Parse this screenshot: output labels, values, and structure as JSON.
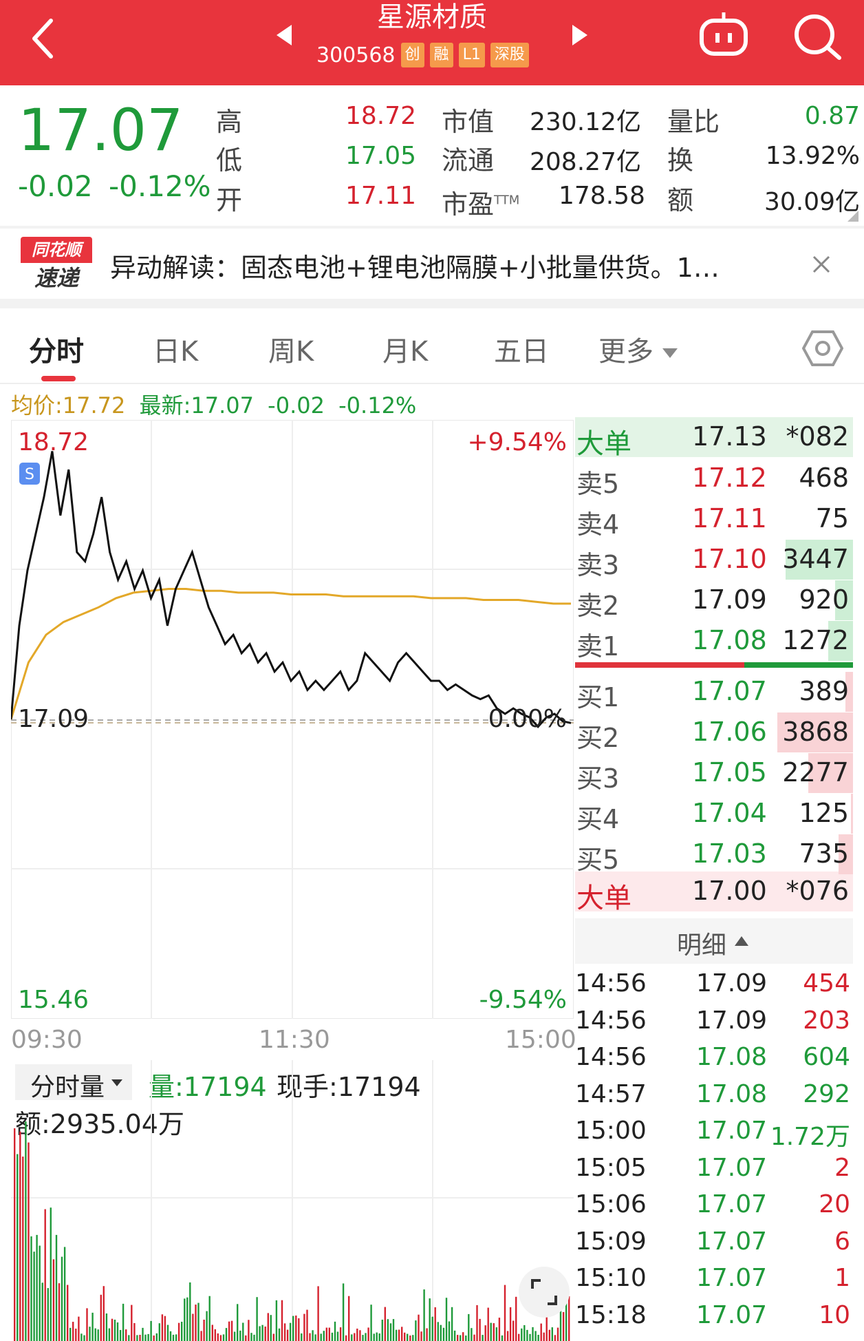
{
  "header": {
    "title": "星源材质",
    "code": "300568",
    "tags": [
      "创",
      "融",
      "L1",
      "深股"
    ]
  },
  "quote": {
    "price": "17.07",
    "change": "-0.02",
    "change_pct": "-0.12%",
    "stats": [
      {
        "label": "高",
        "value": "18.72"
      },
      {
        "label": "低",
        "value": "17.05"
      },
      {
        "label": "开",
        "value": "17.11"
      },
      {
        "label": "市值",
        "value": "230.12亿"
      },
      {
        "label": "流通",
        "value": "208.27亿"
      },
      {
        "label": "市盈",
        "sup": "TTM",
        "value": "178.58"
      },
      {
        "label": "量比",
        "value": "0.87"
      },
      {
        "label": "换",
        "value": "13.92%"
      },
      {
        "label": "额",
        "value": "30.09亿"
      }
    ]
  },
  "news": {
    "logo_top": "同花顺",
    "logo_bottom": "速递",
    "text": "异动解读：固态电池+锂电池隔膜+小批量供货。1…"
  },
  "tabs": [
    "分时",
    "日K",
    "周K",
    "月K",
    "五日",
    "更多"
  ],
  "chart_info": {
    "avg_label": "均价:17.72",
    "latest_label": "最新:17.07",
    "change": "-0.02",
    "change_pct": "-0.12%"
  },
  "chart_data": {
    "type": "line",
    "y_high": "18.72",
    "y_low": "15.46",
    "y_base": "17.09",
    "pct_high": "+9.54%",
    "pct_low": "-9.54%",
    "pct_base": "0.00%",
    "x_labels": [
      "09:30",
      "11:30",
      "15:00"
    ],
    "ylim": [
      15.46,
      18.72
    ],
    "series": [
      {
        "values": [
          17.09,
          17.6,
          17.9,
          18.1,
          18.3,
          18.55,
          18.2,
          18.45,
          18.0,
          17.95,
          18.1,
          18.3,
          18.0,
          17.85,
          17.95,
          17.8,
          17.9,
          17.75,
          17.85,
          17.6,
          17.8,
          17.9,
          18.0,
          17.85,
          17.7,
          17.6,
          17.5,
          17.55,
          17.45,
          17.5,
          17.4,
          17.45,
          17.35,
          17.4,
          17.3,
          17.35,
          17.25,
          17.3,
          17.25,
          17.3,
          17.35,
          17.25,
          17.3,
          17.45,
          17.4,
          17.35,
          17.3,
          17.4,
          17.45,
          17.4,
          17.35,
          17.3,
          17.3,
          17.25,
          17.28,
          17.25,
          17.22,
          17.2,
          17.22,
          17.15,
          17.12,
          17.15,
          17.12,
          17.1,
          17.05,
          17.1,
          17.12,
          17.08,
          17.07
        ]
      },
      {
        "values": [
          17.09,
          17.4,
          17.55,
          17.62,
          17.66,
          17.7,
          17.75,
          17.78,
          17.79,
          17.8,
          17.8,
          17.79,
          17.79,
          17.78,
          17.78,
          17.78,
          17.77,
          17.77,
          17.77,
          17.76,
          17.76,
          17.76,
          17.76,
          17.76,
          17.75,
          17.75,
          17.75,
          17.74,
          17.74,
          17.74,
          17.73,
          17.72,
          17.72
        ]
      }
    ]
  },
  "volume_panel": {
    "dropdown": "分时量",
    "vol_label": "量:17194",
    "hand_label": "现手:17194",
    "amount_label": "额:2935.04万"
  },
  "order_book": {
    "big_sell": {
      "label": "大单",
      "price": "17.13",
      "vol": "*082"
    },
    "asks": [
      {
        "label": "卖5",
        "price": "17.12",
        "vol": "468",
        "bar": 0
      },
      {
        "label": "卖4",
        "price": "17.11",
        "vol": "75",
        "bar": 0
      },
      {
        "label": "卖3",
        "price": "17.10",
        "vol": "3447",
        "bar": 0.89
      },
      {
        "label": "卖2",
        "price": "17.09",
        "vol": "920",
        "bar": 0.24
      },
      {
        "label": "卖1",
        "price": "17.08",
        "vol": "1272",
        "bar": 0.33
      }
    ],
    "bids": [
      {
        "label": "买1",
        "price": "17.07",
        "vol": "389",
        "bar": 0.1
      },
      {
        "label": "买2",
        "price": "17.06",
        "vol": "3868",
        "bar": 1.0
      },
      {
        "label": "买3",
        "price": "17.05",
        "vol": "2277",
        "bar": 0.59
      },
      {
        "label": "买4",
        "price": "17.04",
        "vol": "125",
        "bar": 0.03
      },
      {
        "label": "买5",
        "price": "17.03",
        "vol": "735",
        "bar": 0.19
      }
    ],
    "big_buy": {
      "label": "大单",
      "price": "17.00",
      "vol": "*076"
    },
    "detail_label": "明细"
  },
  "ticks": [
    {
      "time": "14:56",
      "price": "17.09",
      "vol": "454",
      "pc": "black",
      "vc": "red"
    },
    {
      "time": "14:56",
      "price": "17.09",
      "vol": "203",
      "pc": "black",
      "vc": "red"
    },
    {
      "time": "14:56",
      "price": "17.08",
      "vol": "604",
      "pc": "green",
      "vc": "green"
    },
    {
      "time": "14:57",
      "price": "17.08",
      "vol": "292",
      "pc": "green",
      "vc": "green"
    },
    {
      "time": "15:00",
      "price": "17.07",
      "vol": "1.72万",
      "pc": "green",
      "vc": "green"
    },
    {
      "time": "15:05",
      "price": "17.07",
      "vol": "2",
      "pc": "green",
      "vc": "red"
    },
    {
      "time": "15:06",
      "price": "17.07",
      "vol": "20",
      "pc": "green",
      "vc": "red"
    },
    {
      "time": "15:09",
      "price": "17.07",
      "vol": "6",
      "pc": "green",
      "vc": "red"
    },
    {
      "time": "15:10",
      "price": "17.07",
      "vol": "1",
      "pc": "green",
      "vc": "red"
    },
    {
      "time": "15:18",
      "price": "17.07",
      "vol": "10",
      "pc": "green",
      "vc": "red"
    }
  ],
  "colors": {
    "header": "#e8343d",
    "up": "#d5222e",
    "down": "#1f9a3a",
    "avg": "#e3a829"
  }
}
